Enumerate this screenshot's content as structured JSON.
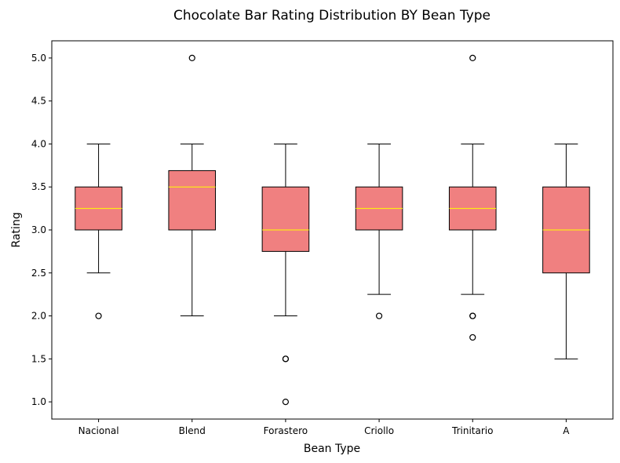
{
  "chart_data": {
    "type": "box",
    "title": "Chocolate Bar Rating Distribution BY Bean Type",
    "xlabel": "Bean Type",
    "ylabel": "Rating",
    "ylim": [
      0.8,
      5.2
    ],
    "yticks": [
      "1.0",
      "1.5",
      "2.0",
      "2.5",
      "3.0",
      "3.5",
      "4.0",
      "4.5",
      "5.0"
    ],
    "grid": false,
    "colors": {
      "box_fill": "#f08080",
      "median": "#ffff00",
      "edge": "#000000"
    },
    "categories": [
      "Nacional",
      "Blend",
      "Forastero",
      "Criollo",
      "Trinitario",
      "A"
    ],
    "boxes": [
      {
        "category": "Nacional",
        "whisker_low": 2.5,
        "q1": 3.0,
        "median": 3.25,
        "q3": 3.5,
        "whisker_high": 4.0,
        "outliers": [
          2.0
        ]
      },
      {
        "category": "Blend",
        "whisker_low": 2.0,
        "q1": 3.0,
        "median": 3.5,
        "q3": 3.69,
        "whisker_high": 4.0,
        "outliers": [
          5.0
        ]
      },
      {
        "category": "Forastero",
        "whisker_low": 2.0,
        "q1": 2.75,
        "median": 3.0,
        "q3": 3.5,
        "whisker_high": 4.0,
        "outliers": [
          1.5,
          1.5,
          1.0
        ]
      },
      {
        "category": "Criollo",
        "whisker_low": 2.25,
        "q1": 3.0,
        "median": 3.25,
        "q3": 3.5,
        "whisker_high": 4.0,
        "outliers": [
          2.0
        ]
      },
      {
        "category": "Trinitario",
        "whisker_low": 2.25,
        "q1": 3.0,
        "median": 3.25,
        "q3": 3.5,
        "whisker_high": 4.0,
        "outliers": [
          5.0,
          2.0,
          2.0,
          1.75
        ]
      },
      {
        "category": "A",
        "whisker_low": 1.5,
        "q1": 2.5,
        "median": 3.0,
        "q3": 3.5,
        "whisker_high": 4.0,
        "outliers": []
      }
    ]
  }
}
